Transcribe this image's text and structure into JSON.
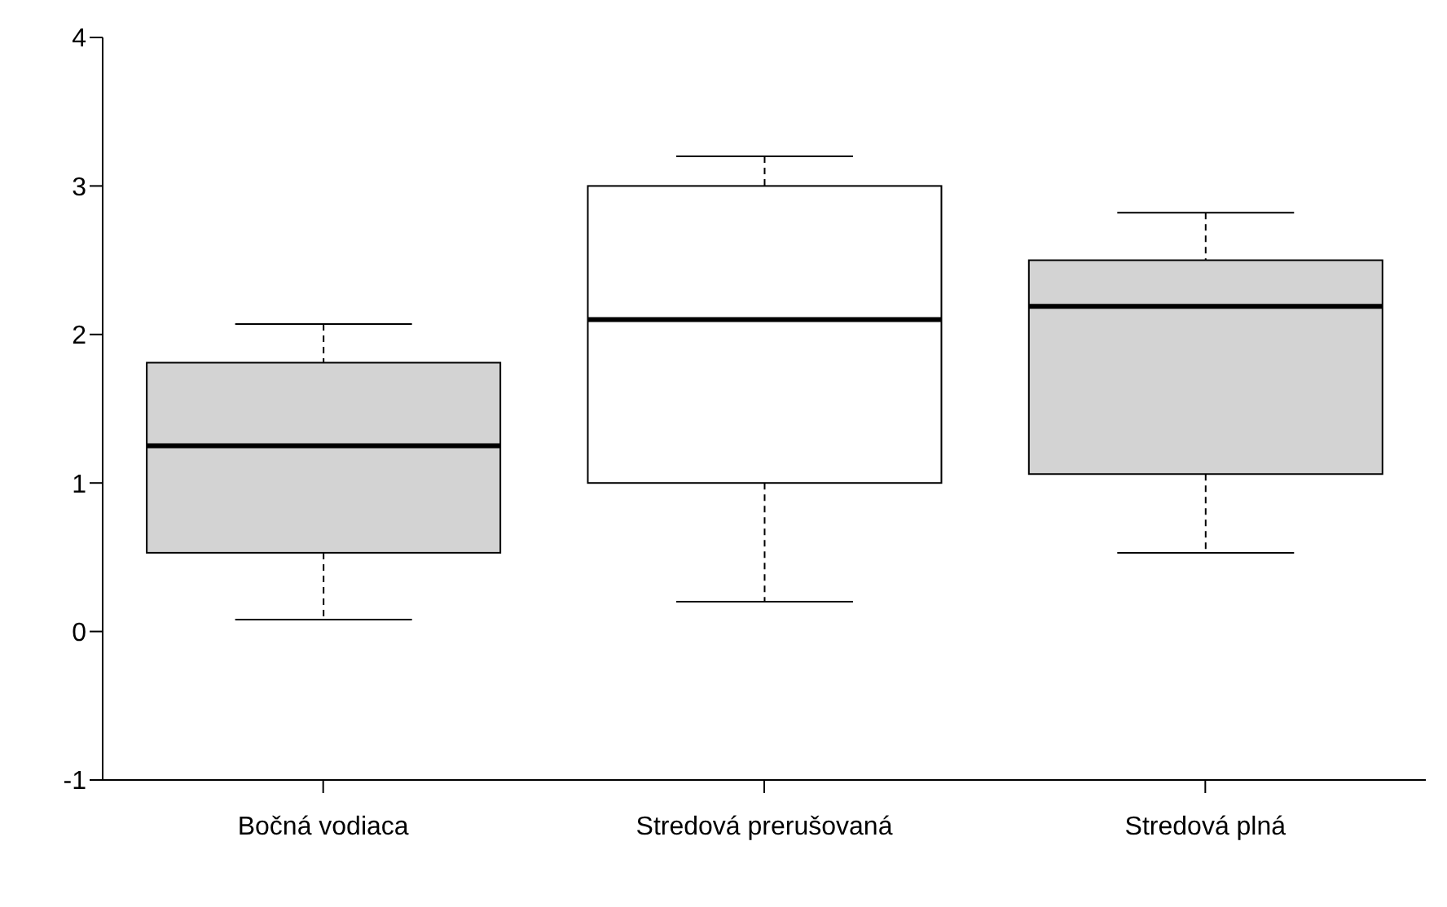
{
  "chart_data": {
    "type": "box",
    "categories": [
      "Bočná vodiaca",
      "Stredová prerušovaná",
      "Stredová plná"
    ],
    "boxes": [
      {
        "low": 0.08,
        "q1": 0.53,
        "median": 1.25,
        "q3": 1.81,
        "high": 2.07
      },
      {
        "low": 0.2,
        "q1": 1.0,
        "median": 2.1,
        "q3": 3.0,
        "high": 3.2
      },
      {
        "low": 0.53,
        "q1": 1.06,
        "median": 2.19,
        "q3": 2.5,
        "high": 2.82
      }
    ],
    "colors": [
      "#d3d3d3",
      "#ffffff",
      "#d3d3d3"
    ],
    "ylim": [
      -1,
      4
    ],
    "yticks": [
      -1,
      0,
      1,
      2,
      3,
      4
    ],
    "grid": false,
    "legend": false
  }
}
